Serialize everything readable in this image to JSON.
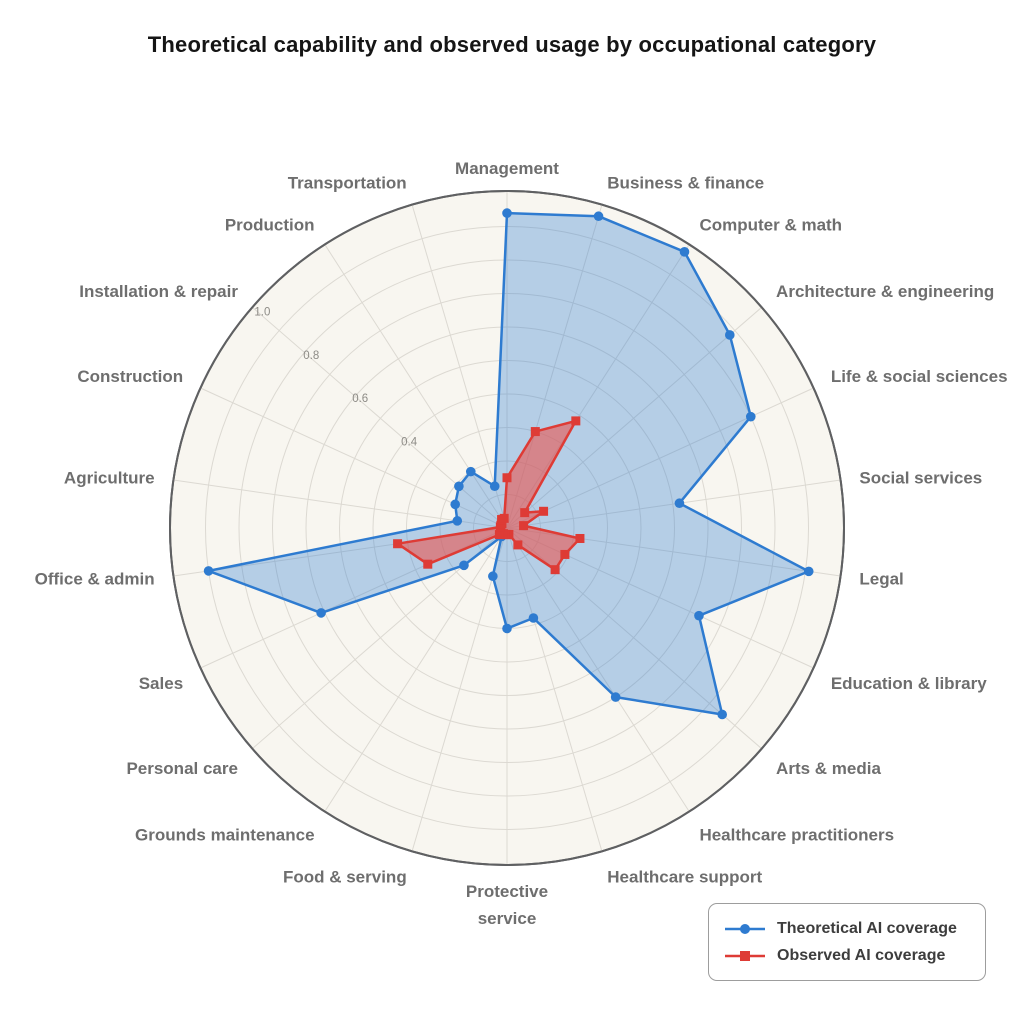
{
  "title": "Theoretical capability and observed usage by occupational category",
  "chart_data": {
    "type": "radar",
    "categories": [
      "Management",
      "Business & finance",
      "Computer & math",
      "Architecture & engineering",
      "Life & social sciences",
      "Social services",
      "Legal",
      "Education & library",
      "Arts & media",
      "Healthcare practitioners",
      "Healthcare support",
      "Protective\nservice",
      "Food & serving",
      "Grounds maintenance",
      "Personal care",
      "Sales",
      "Office & admin",
      "Agriculture",
      "Construction",
      "Installation & repair",
      "Production",
      "Transportation"
    ],
    "series": [
      {
        "name": "Theoretical AI coverage",
        "marker": "circle",
        "color": "#2e7bd0",
        "fill": "rgba(46,123,208,0.33)",
        "values": [
          0.94,
          0.97,
          0.98,
          0.88,
          0.8,
          0.52,
          0.91,
          0.63,
          0.85,
          0.6,
          0.28,
          0.3,
          0.15,
          0.03,
          0.17,
          0.61,
          0.9,
          0.15,
          0.17,
          0.19,
          0.2,
          0.13
        ]
      },
      {
        "name": "Observed AI coverage",
        "marker": "square",
        "color": "#de3b35",
        "fill": "rgba(235,85,78,0.60)",
        "values": [
          0.15,
          0.3,
          0.38,
          0.07,
          0.12,
          0.05,
          0.22,
          0.19,
          0.19,
          0.06,
          0.02,
          0.02,
          0.02,
          0.02,
          0.03,
          0.26,
          0.33,
          0.02,
          0.02,
          0.02,
          0.03,
          0.03
        ]
      }
    ],
    "radial_axis": {
      "tick_labels": [
        "0.4",
        "0.6",
        "0.8",
        "1.0"
      ],
      "tick_values": [
        0.4,
        0.6,
        0.8,
        1.0
      ],
      "grid_step": 0.1,
      "max": 1.0
    },
    "start_angle_deg": 90,
    "direction": "clockwise",
    "grid": true,
    "legend_position": "bottom-right",
    "colors": {
      "plot_background": "#f8f6f0",
      "outer_ring": "#5f6062",
      "grid_line": "#dcd9d2",
      "category_label": "#6e6e6e",
      "tick_label": "#8d8b86"
    }
  },
  "legend": {
    "items": [
      {
        "label": "Theoretical AI coverage"
      },
      {
        "label": "Observed AI coverage"
      }
    ]
  }
}
